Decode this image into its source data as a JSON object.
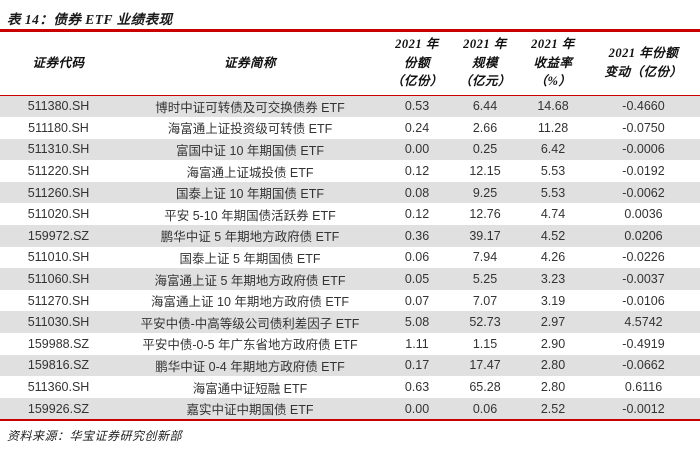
{
  "title": "表 14：债券 ETF 业绩表现",
  "source": "资料来源：华宝证券研究创新部",
  "colors": {
    "rule_red": "#c80000",
    "stripe_gray": "#e0e0e0",
    "text_dark": "#111111"
  },
  "table": {
    "headers": {
      "code": "证券代码",
      "name": "证券简称",
      "shares_2021": [
        "2021 年",
        "份额",
        "（亿份）"
      ],
      "scale_2021": [
        "2021 年",
        "规模",
        "（亿元）"
      ],
      "return_2021": [
        "2021 年",
        "收益率",
        "（%）"
      ],
      "share_change_2021": [
        "2021 年份额",
        "变动（亿份）"
      ]
    },
    "rows": [
      [
        "511380.SH",
        "博时中证可转债及可交换债券 ETF",
        "0.53",
        "6.44",
        "14.68",
        "-0.4660"
      ],
      [
        "511180.SH",
        "海富通上证投资级可转债 ETF",
        "0.24",
        "2.66",
        "11.28",
        "-0.0750"
      ],
      [
        "511310.SH",
        "富国中证 10 年期国债 ETF",
        "0.00",
        "0.25",
        "6.42",
        "-0.0006"
      ],
      [
        "511220.SH",
        "海富通上证城投债 ETF",
        "0.12",
        "12.15",
        "5.53",
        "-0.0192"
      ],
      [
        "511260.SH",
        "国泰上证 10 年期国债 ETF",
        "0.08",
        "9.25",
        "5.53",
        "-0.0062"
      ],
      [
        "511020.SH",
        "平安 5-10 年期国债活跃券 ETF",
        "0.12",
        "12.76",
        "4.74",
        "0.0036"
      ],
      [
        "159972.SZ",
        "鹏华中证 5 年期地方政府债 ETF",
        "0.36",
        "39.17",
        "4.52",
        "0.0206"
      ],
      [
        "511010.SH",
        "国泰上证 5 年期国债 ETF",
        "0.06",
        "7.94",
        "4.26",
        "-0.0226"
      ],
      [
        "511060.SH",
        "海富通上证 5 年期地方政府债 ETF",
        "0.05",
        "5.25",
        "3.23",
        "-0.0037"
      ],
      [
        "511270.SH",
        "海富通上证 10 年期地方政府债 ETF",
        "0.07",
        "7.07",
        "3.19",
        "-0.0106"
      ],
      [
        "511030.SH",
        "平安中债-中高等级公司债利差因子 ETF",
        "5.08",
        "52.73",
        "2.97",
        "4.5742"
      ],
      [
        "159988.SZ",
        "平安中债-0-5 年广东省地方政府债 ETF",
        "1.11",
        "1.15",
        "2.90",
        "-0.4919"
      ],
      [
        "159816.SZ",
        "鹏华中证 0-4 年期地方政府债 ETF",
        "0.17",
        "17.47",
        "2.80",
        "-0.0662"
      ],
      [
        "511360.SH",
        "海富通中证短融 ETF",
        "0.63",
        "65.28",
        "2.80",
        "0.6116"
      ],
      [
        "159926.SZ",
        "嘉实中证中期国债 ETF",
        "0.00",
        "0.06",
        "2.52",
        "-0.0012"
      ]
    ]
  }
}
